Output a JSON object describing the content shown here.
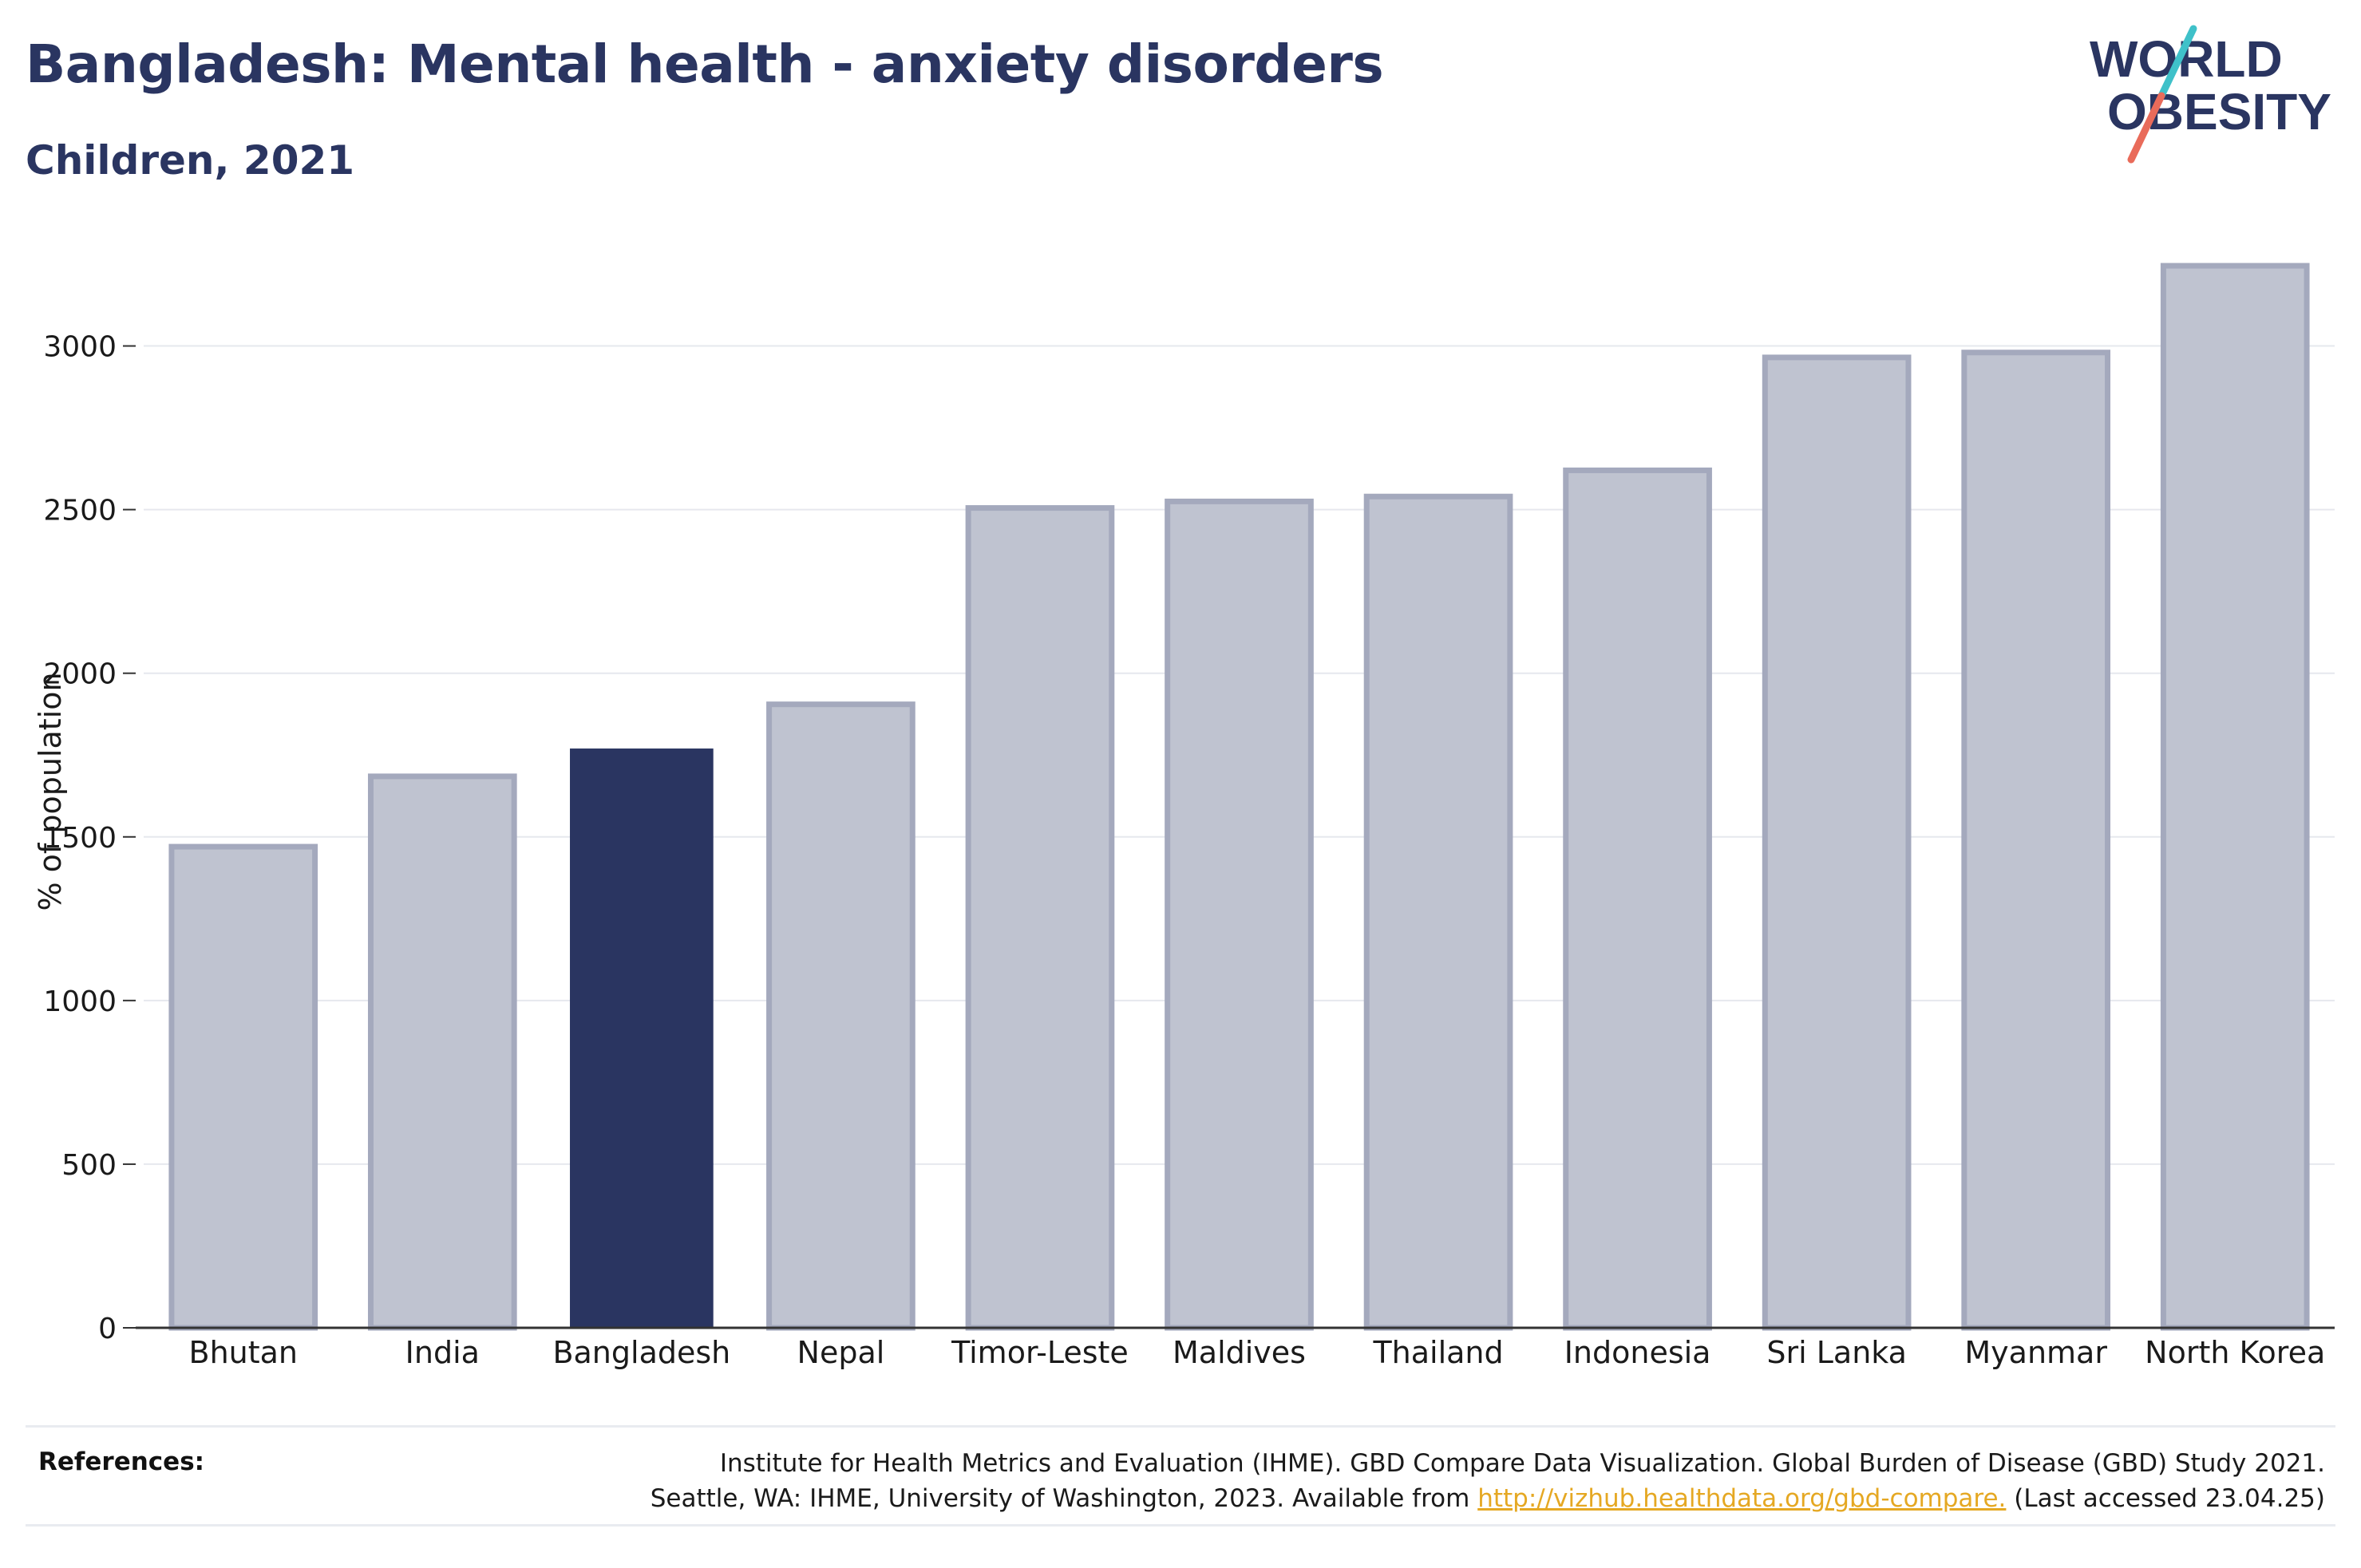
{
  "header": {
    "title": "Bangladesh: Mental health - anxiety disorders",
    "subtitle": "Children, 2021"
  },
  "logo": {
    "line1": "WORLD",
    "line2": "OBESITY",
    "accent_colors": [
      "#3fc1c9",
      "#e96b5a"
    ]
  },
  "colors": {
    "highlight": "#2a3561",
    "bar_fill": "#bfc3d0",
    "bar_stroke": "#a4a9bd",
    "grid": "#e6e8ee"
  },
  "chart_data": {
    "type": "bar",
    "categories": [
      "Bhutan",
      "India",
      "Bangladesh",
      "Nepal",
      "Timor-Leste",
      "Maldives",
      "Thailand",
      "Indonesia",
      "Sri Lanka",
      "Myanmar",
      "North Korea"
    ],
    "values": [
      1470,
      1685,
      1770,
      1905,
      2505,
      2525,
      2540,
      2620,
      2965,
      2980,
      3245
    ],
    "highlight": "Bangladesh",
    "ylabel": "% of population",
    "ylim": [
      0,
      3350
    ],
    "yticks": [
      0,
      500,
      1000,
      1500,
      2000,
      2500,
      3000
    ],
    "grid": true
  },
  "footer": {
    "references_label": "References:",
    "line1": "Institute for Health Metrics and Evaluation (IHME). GBD Compare Data Visualization. Global Burden of Disease (GBD) Study 2021.",
    "line2_prefix": "Seattle, WA: IHME, University of Washington, 2023. Available from ",
    "link": "http://vizhub.healthdata.org/gbd-compare.",
    "line2_suffix": " (Last accessed 23.04.25)"
  }
}
